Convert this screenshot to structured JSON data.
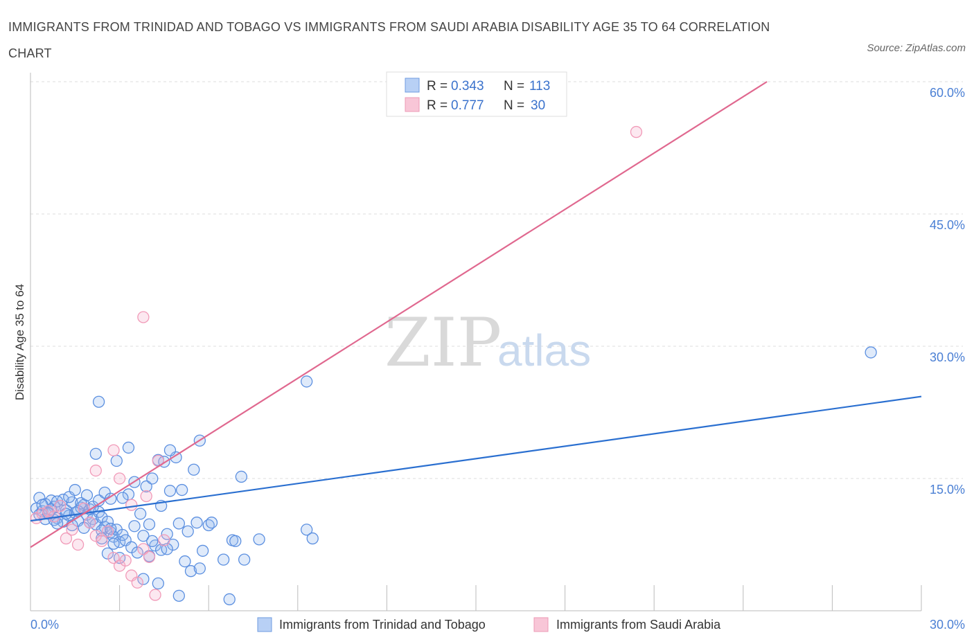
{
  "header": {
    "title": "IMMIGRANTS FROM TRINIDAD AND TOBAGO VS IMMIGRANTS FROM SAUDI ARABIA DISABILITY AGE 35 TO 64 CORRELATION CHART",
    "source": "Source: ZipAtlas.com"
  },
  "colors": {
    "blue": "#5b8fe0",
    "blue_line": "#2a6fd0",
    "pink": "#f19ab8",
    "pink_line": "#e0688f",
    "grid": "#dddddd",
    "axis_text": "#4a7fd4"
  },
  "watermark": {
    "zip": "ZIP",
    "atlas": "atlas"
  },
  "legend": {
    "rows": [
      {
        "r_label": "R =",
        "r_value": "0.343",
        "n_label": "N =",
        "n_value": "113"
      },
      {
        "r_label": "R =",
        "r_value": "0.777",
        "n_label": "N =",
        "n_value": "30"
      }
    ]
  },
  "bottom_legend": {
    "items": [
      "Immigrants from Trinidad and Tobago",
      "Immigrants from Saudi Arabia"
    ]
  },
  "chart_data": {
    "type": "scatter",
    "title": "IMMIGRANTS FROM TRINIDAD AND TOBAGO VS IMMIGRANTS FROM SAUDI ARABIA DISABILITY AGE 35 TO 64 CORRELATION CHART",
    "xlabel": "",
    "ylabel": "Disability Age 35 to 64",
    "xlim": [
      0,
      30
    ],
    "ylim": [
      0,
      60
    ],
    "x_tick_labels": [
      "0.0%",
      "30.0%"
    ],
    "y_ticks": [
      15,
      30,
      45,
      60
    ],
    "y_tick_labels": [
      "15.0%",
      "30.0%",
      "45.0%",
      "60.0%"
    ],
    "grid": true,
    "legend_position": "top-center",
    "series": [
      {
        "name": "Immigrants from Trinidad and Tobago",
        "color": "#5b8fe0",
        "R": 0.343,
        "N": 113,
        "trend": {
          "x": [
            0,
            30
          ],
          "y": [
            10.2,
            24.3
          ]
        },
        "points": [
          [
            0.2,
            11.6
          ],
          [
            0.3,
            12.8
          ],
          [
            0.4,
            11.3
          ],
          [
            0.5,
            12.1
          ],
          [
            0.6,
            11.0
          ],
          [
            0.7,
            12.5
          ],
          [
            0.8,
            11.8
          ],
          [
            0.9,
            10.5
          ],
          [
            1.0,
            11.9
          ],
          [
            1.1,
            12.6
          ],
          [
            1.2,
            11.4
          ],
          [
            1.3,
            10.8
          ],
          [
            1.4,
            12.3
          ],
          [
            1.5,
            11.1
          ],
          [
            1.6,
            10.2
          ],
          [
            1.7,
            11.7
          ],
          [
            1.8,
            12.0
          ],
          [
            1.9,
            10.9
          ],
          [
            2.0,
            11.5
          ],
          [
            2.1,
            10.4
          ],
          [
            2.2,
            9.8
          ],
          [
            2.3,
            11.2
          ],
          [
            2.4,
            10.6
          ],
          [
            2.5,
            9.5
          ],
          [
            2.6,
            10.1
          ],
          [
            2.7,
            8.9
          ],
          [
            2.8,
            8.4
          ],
          [
            2.9,
            9.2
          ],
          [
            3.0,
            7.8
          ],
          [
            3.1,
            8.6
          ],
          [
            0.3,
            10.9
          ],
          [
            0.5,
            10.4
          ],
          [
            0.7,
            11.5
          ],
          [
            0.9,
            12.4
          ],
          [
            1.1,
            10.1
          ],
          [
            1.3,
            12.9
          ],
          [
            1.5,
            13.7
          ],
          [
            1.7,
            12.2
          ],
          [
            1.9,
            13.1
          ],
          [
            2.1,
            11.8
          ],
          [
            2.3,
            12.5
          ],
          [
            2.5,
            13.4
          ],
          [
            2.7,
            12.7
          ],
          [
            0.4,
            12.0
          ],
          [
            0.8,
            10.3
          ],
          [
            1.2,
            11.0
          ],
          [
            1.6,
            11.3
          ],
          [
            2.0,
            10.0
          ],
          [
            2.4,
            9.1
          ],
          [
            2.8,
            7.6
          ],
          [
            3.2,
            8.0
          ],
          [
            3.4,
            7.2
          ],
          [
            3.6,
            6.6
          ],
          [
            3.8,
            8.5
          ],
          [
            4.0,
            9.8
          ],
          [
            4.2,
            7.4
          ],
          [
            4.4,
            6.9
          ],
          [
            4.6,
            8.7
          ],
          [
            4.8,
            7.5
          ],
          [
            5.0,
            9.9
          ],
          [
            5.2,
            5.6
          ],
          [
            5.4,
            4.5
          ],
          [
            5.6,
            10.0
          ],
          [
            5.8,
            6.8
          ],
          [
            6.0,
            9.7
          ],
          [
            6.5,
            5.8
          ],
          [
            6.8,
            8.0
          ],
          [
            3.3,
            13.2
          ],
          [
            3.5,
            14.6
          ],
          [
            3.7,
            11.0
          ],
          [
            3.9,
            14.1
          ],
          [
            4.1,
            15.0
          ],
          [
            4.3,
            17.1
          ],
          [
            4.5,
            16.9
          ],
          [
            4.7,
            13.6
          ],
          [
            4.9,
            17.4
          ],
          [
            5.1,
            13.7
          ],
          [
            5.3,
            9.0
          ],
          [
            5.5,
            16.0
          ],
          [
            5.7,
            19.3
          ],
          [
            2.2,
            17.8
          ],
          [
            2.9,
            17.0
          ],
          [
            3.3,
            18.5
          ],
          [
            2.3,
            23.7
          ],
          [
            4.7,
            18.2
          ],
          [
            7.1,
            15.2
          ],
          [
            6.9,
            7.9
          ],
          [
            7.7,
            8.1
          ],
          [
            6.7,
            1.3
          ],
          [
            5.7,
            4.8
          ],
          [
            5.0,
            1.7
          ],
          [
            4.3,
            3.1
          ],
          [
            3.8,
            3.6
          ],
          [
            4.0,
            6.2
          ],
          [
            2.6,
            6.5
          ],
          [
            3.0,
            6.0
          ],
          [
            4.1,
            7.9
          ],
          [
            2.7,
            9.3
          ],
          [
            1.4,
            9.7
          ],
          [
            0.9,
            9.9
          ],
          [
            1.8,
            9.4
          ],
          [
            2.4,
            8.2
          ],
          [
            3.5,
            9.6
          ],
          [
            6.1,
            10.0
          ],
          [
            7.2,
            5.8
          ],
          [
            4.4,
            11.9
          ],
          [
            4.6,
            7.0
          ],
          [
            3.1,
            12.8
          ],
          [
            9.3,
            26.0
          ],
          [
            9.3,
            9.2
          ],
          [
            9.5,
            8.2
          ],
          [
            28.3,
            29.3
          ],
          [
            0.6,
            11.1
          ]
        ]
      },
      {
        "name": "Immigrants from Saudi Arabia",
        "color": "#f19ab8",
        "R": 0.777,
        "N": 30,
        "trend": {
          "x": [
            0,
            24.8
          ],
          "y": [
            7.2,
            60.0
          ]
        },
        "points": [
          [
            0.2,
            10.5
          ],
          [
            0.4,
            11.0
          ],
          [
            0.6,
            11.3
          ],
          [
            0.8,
            10.7
          ],
          [
            1.0,
            11.9
          ],
          [
            1.2,
            8.2
          ],
          [
            1.4,
            9.2
          ],
          [
            1.6,
            7.5
          ],
          [
            1.8,
            11.6
          ],
          [
            2.0,
            10.0
          ],
          [
            2.2,
            8.5
          ],
          [
            2.4,
            7.9
          ],
          [
            2.6,
            9.0
          ],
          [
            2.8,
            6.0
          ],
          [
            3.0,
            5.1
          ],
          [
            3.2,
            5.7
          ],
          [
            3.4,
            4.0
          ],
          [
            3.6,
            3.2
          ],
          [
            3.8,
            7.0
          ],
          [
            4.0,
            6.1
          ],
          [
            4.2,
            1.8
          ],
          [
            3.9,
            13.0
          ],
          [
            4.3,
            17.0
          ],
          [
            2.2,
            15.9
          ],
          [
            2.8,
            18.2
          ],
          [
            3.4,
            12.0
          ],
          [
            3.0,
            15.0
          ],
          [
            3.8,
            33.3
          ],
          [
            4.5,
            8.0
          ],
          [
            20.4,
            54.3
          ]
        ]
      }
    ]
  }
}
